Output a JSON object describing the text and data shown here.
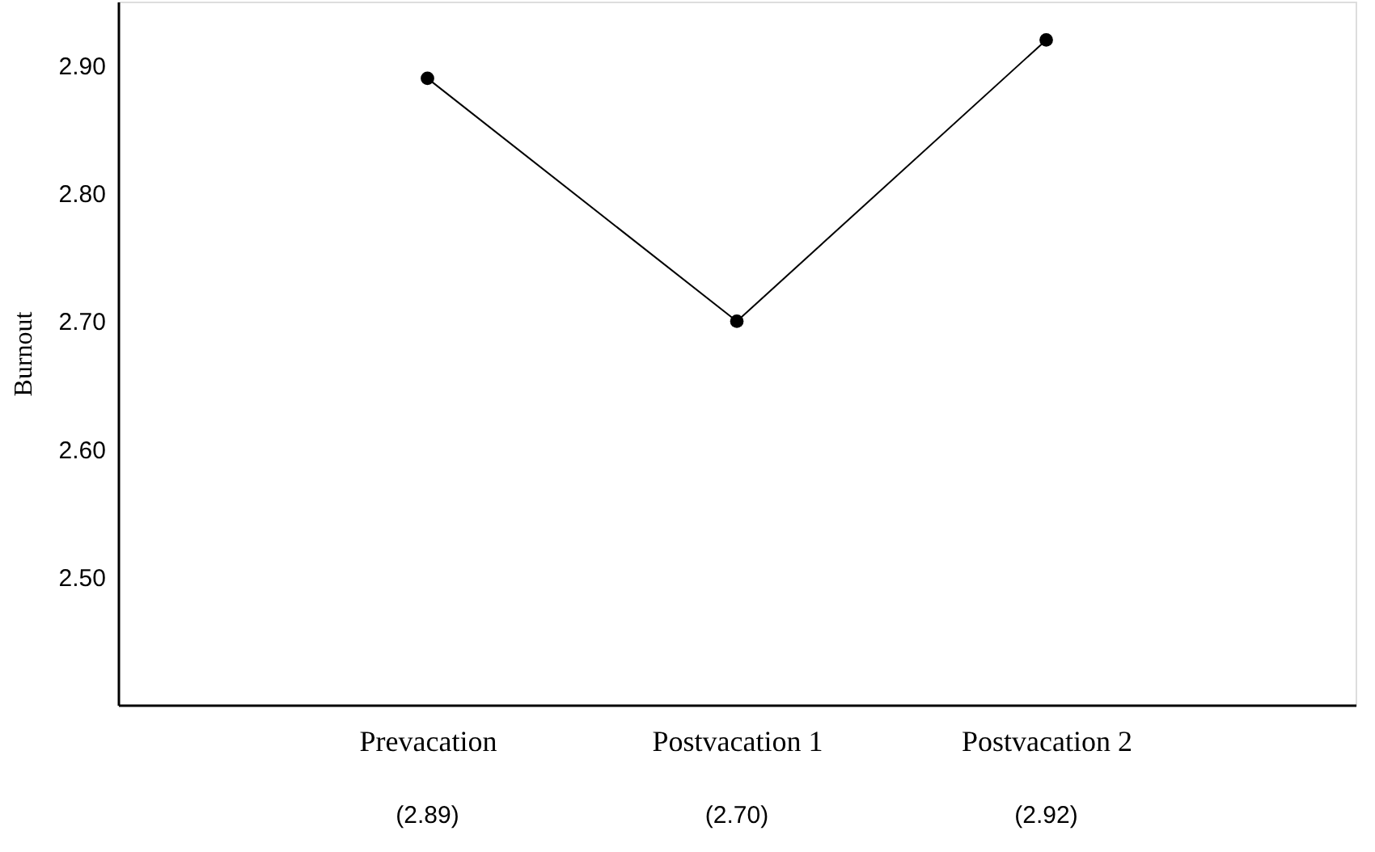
{
  "chart_data": {
    "type": "line",
    "ylabel": "Burnout",
    "categories": [
      "Prevacation",
      "Postvacation 1",
      "Postvacation 2"
    ],
    "series": [
      {
        "color": "#000000",
        "values": [
          2.89,
          2.7,
          2.92
        ],
        "value_labels": [
          "(2.89)",
          "(2.70)",
          "(2.92)"
        ]
      }
    ],
    "ylim": [
      2.4,
      2.95
    ],
    "yticks": [
      {
        "value": 2.5,
        "label": "2.50"
      },
      {
        "value": 2.6,
        "label": "2.60"
      },
      {
        "value": 2.7,
        "label": "2.70"
      },
      {
        "value": 2.8,
        "label": "2.80"
      },
      {
        "value": 2.9,
        "label": "2.90"
      }
    ],
    "grid": false,
    "legend": false,
    "marker": "circle",
    "line_style": "solid"
  }
}
